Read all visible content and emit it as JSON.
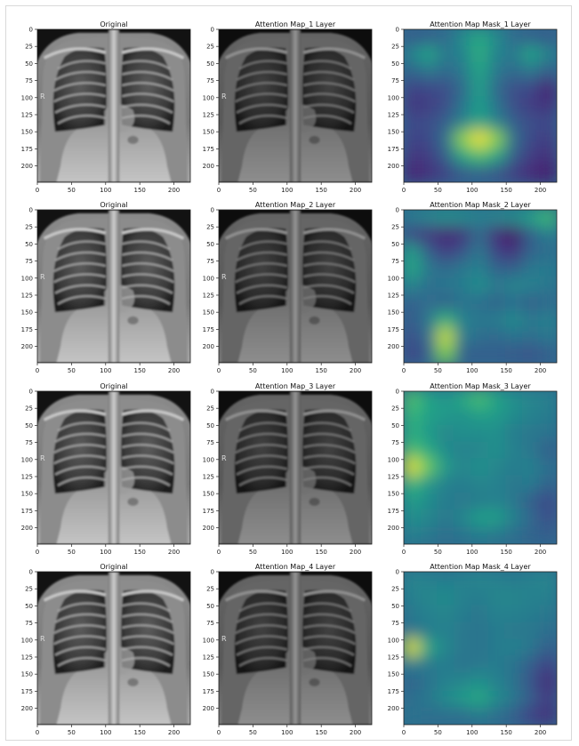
{
  "chart_data": {
    "type": "heatmap",
    "xticks": [
      0,
      50,
      100,
      150,
      200
    ],
    "yticks": [
      0,
      25,
      50,
      75,
      100,
      125,
      150,
      175,
      200
    ],
    "xlim": [
      0,
      224
    ],
    "ylim": [
      224,
      0
    ],
    "image_marker": "R",
    "colormap": "viridis",
    "rows": [
      {
        "original_title": "Original",
        "map_title": "Attention Map_1 Layer",
        "mask_title": "Attention Map Mask_1 Layer",
        "mask_grid": [
          [
            0.28,
            0.3,
            0.34,
            0.48,
            0.6,
            0.48,
            0.34,
            0.3,
            0.28
          ],
          [
            0.45,
            0.58,
            0.4,
            0.45,
            0.62,
            0.45,
            0.4,
            0.58,
            0.45
          ],
          [
            0.32,
            0.4,
            0.34,
            0.4,
            0.58,
            0.4,
            0.34,
            0.4,
            0.3
          ],
          [
            0.2,
            0.22,
            0.24,
            0.34,
            0.56,
            0.34,
            0.24,
            0.22,
            0.1
          ],
          [
            0.16,
            0.18,
            0.24,
            0.38,
            0.55,
            0.38,
            0.24,
            0.18,
            0.14
          ],
          [
            0.22,
            0.24,
            0.3,
            0.44,
            0.58,
            0.44,
            0.3,
            0.24,
            0.22
          ],
          [
            0.2,
            0.22,
            0.36,
            0.82,
            0.98,
            0.82,
            0.36,
            0.22,
            0.18
          ],
          [
            0.16,
            0.18,
            0.3,
            0.58,
            0.7,
            0.58,
            0.3,
            0.18,
            0.14
          ],
          [
            0.1,
            0.14,
            0.2,
            0.28,
            0.3,
            0.26,
            0.18,
            0.12,
            0.08
          ]
        ]
      },
      {
        "original_title": "Original",
        "map_title": "Attention Map_2 Layer",
        "mask_title": "Attention Map Mask_2 Layer",
        "mask_grid": [
          [
            0.42,
            0.46,
            0.5,
            0.48,
            0.44,
            0.46,
            0.48,
            0.56,
            0.68
          ],
          [
            0.2,
            0.16,
            0.1,
            0.14,
            0.34,
            0.12,
            0.06,
            0.3,
            0.42
          ],
          [
            0.56,
            0.3,
            0.18,
            0.26,
            0.4,
            0.2,
            0.14,
            0.32,
            0.36
          ],
          [
            0.6,
            0.4,
            0.34,
            0.4,
            0.44,
            0.32,
            0.3,
            0.4,
            0.42
          ],
          [
            0.46,
            0.36,
            0.4,
            0.42,
            0.5,
            0.4,
            0.46,
            0.44,
            0.4
          ],
          [
            0.3,
            0.36,
            0.3,
            0.38,
            0.36,
            0.32,
            0.36,
            0.3,
            0.34
          ],
          [
            0.28,
            0.4,
            0.64,
            0.44,
            0.4,
            0.42,
            0.48,
            0.4,
            0.44
          ],
          [
            0.24,
            0.36,
            0.92,
            0.42,
            0.36,
            0.34,
            0.38,
            0.36,
            0.4
          ],
          [
            0.2,
            0.3,
            0.8,
            0.3,
            0.3,
            0.3,
            0.28,
            0.26,
            0.3
          ]
        ]
      },
      {
        "original_title": "Original",
        "map_title": "Attention Map_3 Layer",
        "mask_title": "Attention Map Mask_3 Layer",
        "mask_grid": [
          [
            0.72,
            0.58,
            0.52,
            0.6,
            0.7,
            0.58,
            0.5,
            0.46,
            0.44
          ],
          [
            0.66,
            0.56,
            0.54,
            0.5,
            0.56,
            0.54,
            0.48,
            0.44,
            0.42
          ],
          [
            0.62,
            0.54,
            0.46,
            0.5,
            0.48,
            0.5,
            0.42,
            0.4,
            0.38
          ],
          [
            0.7,
            0.6,
            0.48,
            0.44,
            0.46,
            0.5,
            0.44,
            0.4,
            0.3
          ],
          [
            0.96,
            0.76,
            0.54,
            0.46,
            0.5,
            0.46,
            0.42,
            0.44,
            0.36
          ],
          [
            0.66,
            0.52,
            0.44,
            0.42,
            0.46,
            0.44,
            0.4,
            0.42,
            0.32
          ],
          [
            0.56,
            0.48,
            0.42,
            0.4,
            0.42,
            0.44,
            0.4,
            0.3,
            0.22
          ],
          [
            0.5,
            0.46,
            0.4,
            0.46,
            0.56,
            0.56,
            0.44,
            0.34,
            0.24
          ],
          [
            0.44,
            0.4,
            0.36,
            0.38,
            0.42,
            0.4,
            0.36,
            0.32,
            0.3
          ]
        ]
      },
      {
        "original_title": "Original",
        "map_title": "Attention Map_4 Layer",
        "mask_title": "Attention Map Mask_4 Layer",
        "mask_grid": [
          [
            0.46,
            0.44,
            0.42,
            0.44,
            0.46,
            0.44,
            0.42,
            0.44,
            0.46
          ],
          [
            0.44,
            0.46,
            0.48,
            0.44,
            0.42,
            0.46,
            0.46,
            0.44,
            0.44
          ],
          [
            0.4,
            0.44,
            0.46,
            0.42,
            0.4,
            0.44,
            0.44,
            0.42,
            0.4
          ],
          [
            0.38,
            0.42,
            0.44,
            0.4,
            0.38,
            0.42,
            0.4,
            0.4,
            0.36
          ],
          [
            0.95,
            0.58,
            0.46,
            0.4,
            0.38,
            0.42,
            0.44,
            0.4,
            0.3
          ],
          [
            0.42,
            0.4,
            0.42,
            0.38,
            0.4,
            0.42,
            0.38,
            0.3,
            0.2
          ],
          [
            0.32,
            0.38,
            0.44,
            0.46,
            0.5,
            0.44,
            0.38,
            0.26,
            0.12
          ],
          [
            0.36,
            0.4,
            0.48,
            0.54,
            0.6,
            0.48,
            0.4,
            0.3,
            0.18
          ],
          [
            0.38,
            0.36,
            0.36,
            0.36,
            0.4,
            0.36,
            0.3,
            0.2,
            0.14
          ]
        ]
      }
    ]
  }
}
